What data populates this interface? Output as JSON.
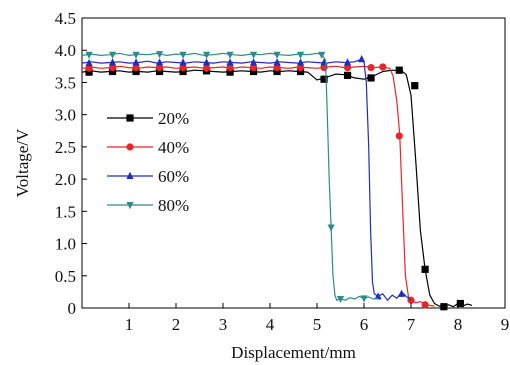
{
  "chart_data": {
    "type": "line",
    "xlabel": "Displacement/mm",
    "ylabel": "Voltage/V",
    "xlim": [
      0,
      9
    ],
    "ylim": [
      0,
      4.5
    ],
    "x_ticks": [
      "1",
      "2",
      "3",
      "4",
      "5",
      "6",
      "7",
      "8",
      "9"
    ],
    "y_ticks": [
      "0",
      "0.5",
      "1.0",
      "1.5",
      "2.0",
      "2.5",
      "3.0",
      "3.5",
      "4.0",
      "4.5"
    ],
    "grid": false,
    "legend_position": "left",
    "series": [
      {
        "name": "20%",
        "color": "#000000",
        "marker": "square",
        "points": [
          [
            0.0,
            3.66
          ],
          [
            0.2,
            3.68
          ],
          [
            0.4,
            3.66
          ],
          [
            0.6,
            3.67
          ],
          [
            0.8,
            3.68
          ],
          [
            1.0,
            3.66
          ],
          [
            1.2,
            3.67
          ],
          [
            1.4,
            3.66
          ],
          [
            1.6,
            3.68
          ],
          [
            1.8,
            3.67
          ],
          [
            2.0,
            3.66
          ],
          [
            2.2,
            3.67
          ],
          [
            2.4,
            3.69
          ],
          [
            2.6,
            3.68
          ],
          [
            2.8,
            3.67
          ],
          [
            3.0,
            3.66
          ],
          [
            3.2,
            3.67
          ],
          [
            3.4,
            3.68
          ],
          [
            3.6,
            3.67
          ],
          [
            3.8,
            3.66
          ],
          [
            4.0,
            3.68
          ],
          [
            4.2,
            3.67
          ],
          [
            4.4,
            3.68
          ],
          [
            4.6,
            3.67
          ],
          [
            4.8,
            3.66
          ],
          [
            5.0,
            3.54
          ],
          [
            5.2,
            3.58
          ],
          [
            5.4,
            3.63
          ],
          [
            5.6,
            3.62
          ],
          [
            5.8,
            3.57
          ],
          [
            6.0,
            3.55
          ],
          [
            6.2,
            3.6
          ],
          [
            6.4,
            3.67
          ],
          [
            6.6,
            3.69
          ],
          [
            6.8,
            3.68
          ],
          [
            6.9,
            3.62
          ],
          [
            7.0,
            3.3
          ],
          [
            7.1,
            2.3
          ],
          [
            7.2,
            1.2
          ],
          [
            7.3,
            0.6
          ],
          [
            7.4,
            0.2
          ],
          [
            7.5,
            0.07
          ],
          [
            7.6,
            0.03
          ],
          [
            7.7,
            0.02
          ],
          [
            7.8,
            0.05
          ],
          [
            7.9,
            0.02
          ],
          [
            8.0,
            0.07
          ],
          [
            8.1,
            0.03
          ],
          [
            8.2,
            0.06
          ],
          [
            8.3,
            0.04
          ]
        ],
        "marked": [
          [
            0.15,
            3.66
          ],
          [
            0.65,
            3.67
          ],
          [
            1.15,
            3.67
          ],
          [
            1.65,
            3.67
          ],
          [
            2.15,
            3.67
          ],
          [
            2.65,
            3.68
          ],
          [
            3.15,
            3.66
          ],
          [
            3.65,
            3.67
          ],
          [
            4.15,
            3.67
          ],
          [
            4.65,
            3.67
          ],
          [
            5.15,
            3.55
          ],
          [
            5.65,
            3.61
          ],
          [
            6.15,
            3.57
          ],
          [
            6.75,
            3.69
          ],
          [
            7.08,
            3.45
          ],
          [
            7.3,
            0.6
          ],
          [
            7.7,
            0.02
          ],
          [
            8.05,
            0.07
          ]
        ]
      },
      {
        "name": "40%",
        "color": "#e8262a",
        "marker": "circle",
        "points": [
          [
            0.0,
            3.72
          ],
          [
            0.2,
            3.74
          ],
          [
            0.4,
            3.72
          ],
          [
            0.6,
            3.73
          ],
          [
            0.8,
            3.75
          ],
          [
            1.0,
            3.73
          ],
          [
            1.2,
            3.72
          ],
          [
            1.4,
            3.74
          ],
          [
            1.6,
            3.73
          ],
          [
            1.8,
            3.74
          ],
          [
            2.0,
            3.72
          ],
          [
            2.2,
            3.73
          ],
          [
            2.4,
            3.74
          ],
          [
            2.6,
            3.72
          ],
          [
            2.8,
            3.73
          ],
          [
            3.0,
            3.74
          ],
          [
            3.2,
            3.72
          ],
          [
            3.4,
            3.74
          ],
          [
            3.6,
            3.73
          ],
          [
            3.8,
            3.72
          ],
          [
            4.0,
            3.74
          ],
          [
            4.2,
            3.73
          ],
          [
            4.4,
            3.72
          ],
          [
            4.6,
            3.74
          ],
          [
            4.8,
            3.73
          ],
          [
            5.0,
            3.72
          ],
          [
            5.2,
            3.74
          ],
          [
            5.4,
            3.75
          ],
          [
            5.6,
            3.73
          ],
          [
            5.8,
            3.74
          ],
          [
            6.0,
            3.75
          ],
          [
            6.2,
            3.73
          ],
          [
            6.4,
            3.74
          ],
          [
            6.55,
            3.72
          ],
          [
            6.62,
            3.6
          ],
          [
            6.7,
            3.2
          ],
          [
            6.76,
            2.7
          ],
          [
            6.82,
            1.6
          ],
          [
            6.88,
            0.5
          ],
          [
            6.95,
            0.15
          ],
          [
            7.0,
            0.12
          ],
          [
            7.1,
            0.08
          ],
          [
            7.2,
            0.1
          ],
          [
            7.3,
            0.06
          ],
          [
            7.4,
            0.04
          ],
          [
            7.5,
            0.03
          ]
        ],
        "marked": [
          [
            0.15,
            3.72
          ],
          [
            0.65,
            3.73
          ],
          [
            1.15,
            3.73
          ],
          [
            1.65,
            3.73
          ],
          [
            2.15,
            3.73
          ],
          [
            2.65,
            3.72
          ],
          [
            3.15,
            3.73
          ],
          [
            3.65,
            3.73
          ],
          [
            4.15,
            3.73
          ],
          [
            4.65,
            3.73
          ],
          [
            5.15,
            3.73
          ],
          [
            5.65,
            3.73
          ],
          [
            6.15,
            3.73
          ],
          [
            6.4,
            3.74
          ],
          [
            6.75,
            2.67
          ],
          [
            7.0,
            0.12
          ],
          [
            7.3,
            0.05
          ]
        ]
      },
      {
        "name": "60%",
        "color": "#1f2dbd",
        "marker": "triangle-up",
        "points": [
          [
            0.0,
            3.8
          ],
          [
            0.2,
            3.82
          ],
          [
            0.4,
            3.8
          ],
          [
            0.6,
            3.81
          ],
          [
            0.8,
            3.82
          ],
          [
            1.0,
            3.8
          ],
          [
            1.2,
            3.81
          ],
          [
            1.4,
            3.83
          ],
          [
            1.6,
            3.8
          ],
          [
            1.8,
            3.82
          ],
          [
            2.0,
            3.81
          ],
          [
            2.2,
            3.8
          ],
          [
            2.4,
            3.82
          ],
          [
            2.6,
            3.81
          ],
          [
            2.8,
            3.8
          ],
          [
            3.0,
            3.82
          ],
          [
            3.2,
            3.81
          ],
          [
            3.4,
            3.8
          ],
          [
            3.6,
            3.82
          ],
          [
            3.8,
            3.81
          ],
          [
            4.0,
            3.8
          ],
          [
            4.2,
            3.82
          ],
          [
            4.4,
            3.81
          ],
          [
            4.6,
            3.8
          ],
          [
            4.8,
            3.82
          ],
          [
            5.0,
            3.81
          ],
          [
            5.2,
            3.8
          ],
          [
            5.4,
            3.82
          ],
          [
            5.6,
            3.81
          ],
          [
            5.8,
            3.82
          ],
          [
            5.95,
            3.86
          ],
          [
            6.0,
            3.82
          ],
          [
            6.05,
            3.5
          ],
          [
            6.1,
            2.5
          ],
          [
            6.14,
            1.2
          ],
          [
            6.18,
            0.4
          ],
          [
            6.22,
            0.22
          ],
          [
            6.3,
            0.18
          ],
          [
            6.4,
            0.22
          ],
          [
            6.5,
            0.12
          ],
          [
            6.6,
            0.2
          ],
          [
            6.7,
            0.15
          ],
          [
            6.8,
            0.25
          ],
          [
            6.9,
            0.18
          ],
          [
            7.0,
            0.12
          ]
        ],
        "marked": [
          [
            0.15,
            3.8
          ],
          [
            0.65,
            3.81
          ],
          [
            1.15,
            3.81
          ],
          [
            1.65,
            3.81
          ],
          [
            2.15,
            3.81
          ],
          [
            2.65,
            3.81
          ],
          [
            3.15,
            3.81
          ],
          [
            3.65,
            3.81
          ],
          [
            4.15,
            3.81
          ],
          [
            4.65,
            3.81
          ],
          [
            5.15,
            3.81
          ],
          [
            5.65,
            3.81
          ],
          [
            5.95,
            3.86
          ],
          [
            6.3,
            0.18
          ],
          [
            6.8,
            0.22
          ]
        ]
      },
      {
        "name": "80%",
        "color": "#2e8b8b",
        "marker": "triangle-down",
        "points": [
          [
            0.0,
            3.92
          ],
          [
            0.2,
            3.94
          ],
          [
            0.4,
            3.92
          ],
          [
            0.6,
            3.93
          ],
          [
            0.8,
            3.95
          ],
          [
            1.0,
            3.92
          ],
          [
            1.2,
            3.94
          ],
          [
            1.4,
            3.93
          ],
          [
            1.6,
            3.95
          ],
          [
            1.8,
            3.92
          ],
          [
            2.0,
            3.94
          ],
          [
            2.2,
            3.93
          ],
          [
            2.4,
            3.95
          ],
          [
            2.6,
            3.92
          ],
          [
            2.8,
            3.93
          ],
          [
            3.0,
            3.95
          ],
          [
            3.2,
            3.93
          ],
          [
            3.4,
            3.92
          ],
          [
            3.6,
            3.94
          ],
          [
            3.8,
            3.93
          ],
          [
            4.0,
            3.95
          ],
          [
            4.2,
            3.93
          ],
          [
            4.4,
            3.92
          ],
          [
            4.6,
            3.94
          ],
          [
            4.8,
            3.93
          ],
          [
            5.0,
            3.95
          ],
          [
            5.1,
            3.93
          ],
          [
            5.18,
            3.85
          ],
          [
            5.22,
            3.0
          ],
          [
            5.26,
            2.0
          ],
          [
            5.3,
            1.25
          ],
          [
            5.34,
            0.5
          ],
          [
            5.38,
            0.2
          ],
          [
            5.42,
            0.12
          ],
          [
            5.5,
            0.15
          ],
          [
            5.6,
            0.12
          ],
          [
            5.7,
            0.16
          ],
          [
            5.8,
            0.14
          ],
          [
            5.9,
            0.18
          ],
          [
            6.0,
            0.15
          ],
          [
            6.1,
            0.17
          ],
          [
            6.2,
            0.14
          ],
          [
            6.3,
            0.15
          ]
        ],
        "marked": [
          [
            0.15,
            3.93
          ],
          [
            0.65,
            3.93
          ],
          [
            1.15,
            3.93
          ],
          [
            1.65,
            3.94
          ],
          [
            2.15,
            3.93
          ],
          [
            2.65,
            3.93
          ],
          [
            3.15,
            3.93
          ],
          [
            3.65,
            3.93
          ],
          [
            4.15,
            3.93
          ],
          [
            4.65,
            3.93
          ],
          [
            5.1,
            3.93
          ],
          [
            5.3,
            1.25
          ],
          [
            5.5,
            0.14
          ],
          [
            6.0,
            0.15
          ]
        ]
      }
    ]
  }
}
